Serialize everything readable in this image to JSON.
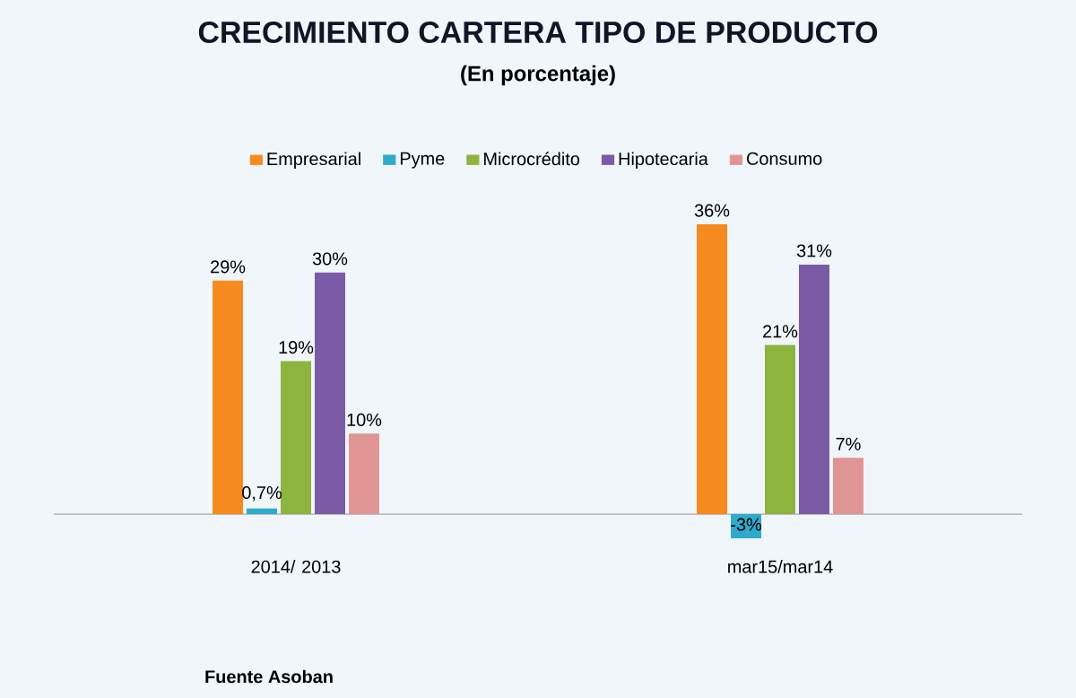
{
  "chart_data": {
    "type": "bar",
    "title": "CRECIMIENTO CARTERA TIPO DE PRODUCTO",
    "subtitle": "(En porcentaje)",
    "categories": [
      "2014/ 2013",
      "mar15/mar14"
    ],
    "series": [
      {
        "name": "Empresarial",
        "color": "#f58a1f",
        "values": [
          29,
          36
        ],
        "value_labels": [
          "29%",
          "36%"
        ]
      },
      {
        "name": "Pyme",
        "color": "#2eaacb",
        "values": [
          0.7,
          -3
        ],
        "value_labels": [
          "0,7%",
          "-3%"
        ]
      },
      {
        "name": "Microcrédito",
        "color": "#8cb43f",
        "values": [
          19,
          21
        ],
        "value_labels": [
          "19%",
          "21%"
        ]
      },
      {
        "name": "Hipotecaria",
        "color": "#7b5aa6",
        "values": [
          30,
          31
        ],
        "value_labels": [
          "30%",
          "31%"
        ]
      },
      {
        "name": "Consumo",
        "color": "#e09595",
        "values": [
          10,
          7
        ],
        "value_labels": [
          "10%",
          "7%"
        ]
      }
    ],
    "legend": "top",
    "annotations": [
      "Fuente Asoban"
    ]
  }
}
